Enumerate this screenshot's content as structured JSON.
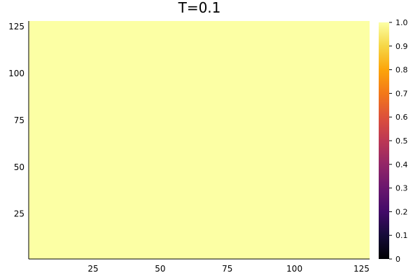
{
  "chart_data": {
    "type": "heatmap",
    "title": "T=0.1",
    "xlabel": "",
    "ylabel": "",
    "x_range": [
      1,
      128
    ],
    "y_range": [
      1,
      128
    ],
    "x_ticks": [
      25,
      50,
      75,
      100,
      125
    ],
    "y_ticks": [
      25,
      50,
      75,
      100,
      125
    ],
    "grid": false,
    "value": 1.0,
    "cell_value_description": "uniform field, every cell = 1.0",
    "colorbar": {
      "colormap": "inferno",
      "range": [
        0,
        1
      ],
      "ticks": [
        "0",
        "0.1",
        "0.2",
        "0.3",
        "0.4",
        "0.5",
        "0.6",
        "0.7",
        "0.8",
        "0.9",
        "1.0"
      ],
      "placement": "right"
    },
    "colors": {
      "fill": "#fcffa4",
      "axis": "#000000",
      "background": "#ffffff"
    }
  }
}
